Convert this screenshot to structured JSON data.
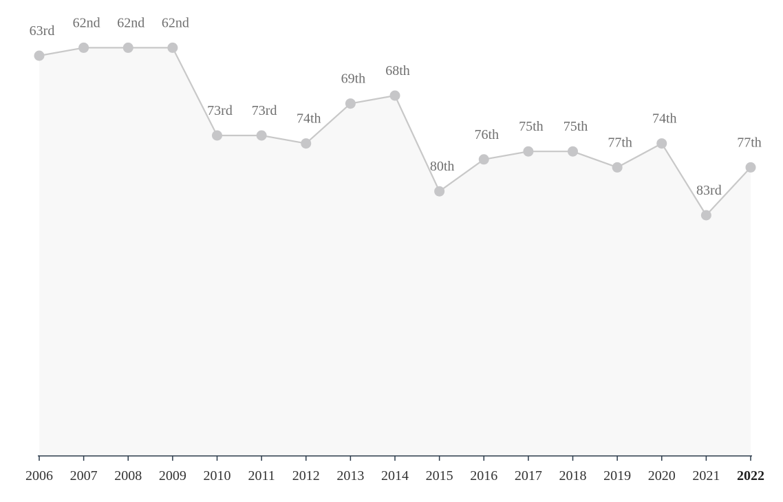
{
  "chart_data": {
    "type": "line",
    "area_fill": true,
    "inverted_y": true,
    "x": [
      "2006",
      "2007",
      "2008",
      "2009",
      "2010",
      "2011",
      "2012",
      "2013",
      "2014",
      "2015",
      "2016",
      "2017",
      "2018",
      "2019",
      "2020",
      "2021",
      "2022"
    ],
    "series": [
      {
        "values": [
          63,
          62,
          62,
          62,
          73,
          73,
          74,
          69,
          68,
          80,
          76,
          75,
          75,
          77,
          74,
          83,
          77
        ],
        "labels": [
          "63rd",
          "62nd",
          "62nd",
          "62nd",
          "73rd",
          "73rd",
          "74th",
          "69th",
          "68th",
          "80th",
          "76th",
          "75th",
          "75th",
          "77th",
          "74th",
          "83rd",
          "77th"
        ]
      }
    ],
    "highlight_x": "2022",
    "grid": false,
    "colors": {
      "line": "#c8c8c8",
      "point": "#c6c6c8",
      "area": "#f8f8f8",
      "axis": "#2b3a4a"
    }
  }
}
